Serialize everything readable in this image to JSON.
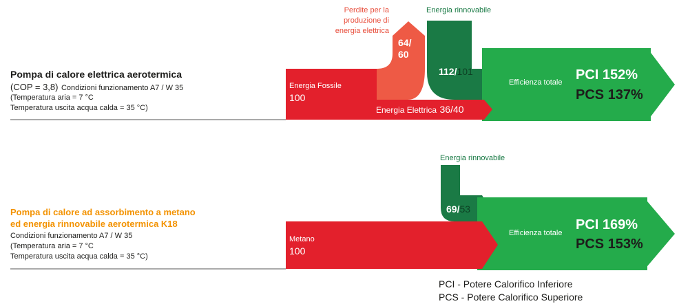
{
  "colors": {
    "red": "#e3202c",
    "loss": "#ee5a45",
    "renewable": "#1a7a45",
    "renewable_dark": "#13653a",
    "green": "#24ab4b",
    "orange": "#f39200",
    "rule": "#555555"
  },
  "systems": [
    {
      "title": "Pompa di calore elettrica aerotermica",
      "line1_cop": "(COP = 3,8)",
      "line1_conditions": "Condizioni funzionamento A7 / W 35",
      "line2": "(Temperatura aria = 7 °C",
      "line3": "Temperatura uscita acqua calda = 35 °C)",
      "input_label": "Energia Fossile",
      "input_value": "100",
      "losses_label_1": "Perdite per la",
      "losses_label_2": "produzione di",
      "losses_label_3": "energia elettrica",
      "losses_value_1": "64/",
      "losses_value_2": "60",
      "electric_label": "Energia Elettrica",
      "electric_value": "36/40",
      "renewable_label": "Energia rinnovabile",
      "renewable_value_a": "112/",
      "renewable_value_b": "101",
      "efficiency_label": "Efficienza totale",
      "pci": "PCI 152%",
      "pcs": "PCS 137%"
    },
    {
      "title_1": "Pompa di calore ad assorbimento a metano",
      "title_2": "ed energia rinnovabile aerotermica K18",
      "line1": "Condizioni funzionamento A7 / W 35",
      "line2": "(Temperatura aria = 7 °C",
      "line3": "Temperatura uscita acqua calda = 35 °C)",
      "input_label": "Metano",
      "input_value": "100",
      "renewable_label": "Energia rinnovabile",
      "renewable_value_a": "69/",
      "renewable_value_b": "53",
      "efficiency_label": "Efficienza totale",
      "pci": "PCI 169%",
      "pcs": "PCS 153%"
    }
  ],
  "legend": {
    "pci": "PCI - Potere Calorifico Inferiore",
    "pcs": "PCS - Potere Calorifico Superiore"
  }
}
